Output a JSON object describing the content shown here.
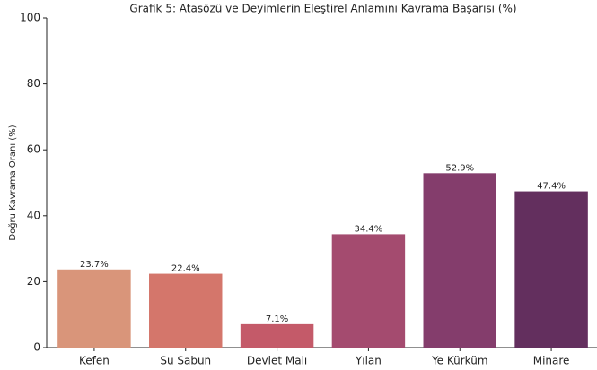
{
  "chart_data": {
    "type": "bar",
    "title": "Grafik 5: Atasözü ve Deyimlerin Eleştirel Anlamını Kavrama Başarısı (%)",
    "y_label": "Doğru Kavrama Oranı (%)",
    "categories": [
      "Kefen",
      "Su Sabun",
      "Devlet Malı",
      "Yılan",
      "Ye Kürküm",
      "Minare"
    ],
    "values": [
      23.7,
      22.4,
      7.1,
      34.4,
      52.9,
      47.4
    ],
    "value_labels": [
      "23.7%",
      "22.4%",
      "7.1%",
      "34.4%",
      "52.9%",
      "47.4%"
    ],
    "colors": [
      "#d9957a",
      "#d4766b",
      "#c45a69",
      "#a44b6f",
      "#843d6c",
      "#632f5e"
    ],
    "ylim": [
      0,
      100
    ],
    "yticks": [
      0,
      20,
      40,
      60,
      80,
      100
    ],
    "grid": false
  }
}
